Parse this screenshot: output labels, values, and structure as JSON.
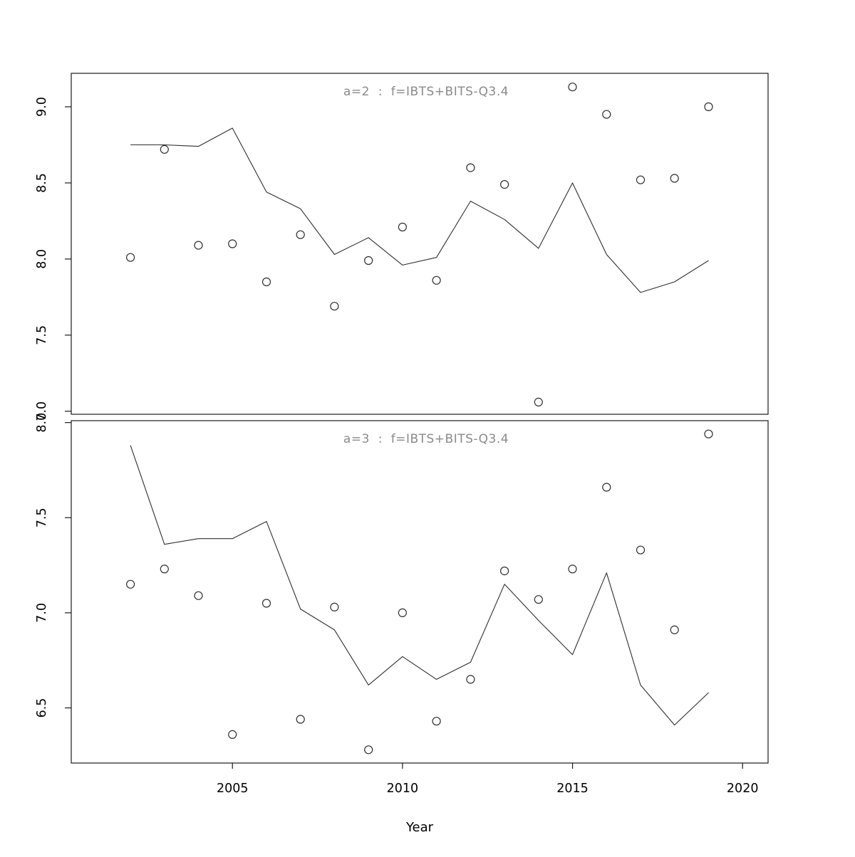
{
  "figure": {
    "xlabel": "Year",
    "background": "#ffffff",
    "axis_color": "#1a1a1a",
    "data_color": "#2e2e2e",
    "title_color": "#8a8a8a",
    "tick_label_color": "#000000"
  },
  "chart_data": [
    {
      "type": "line",
      "title": "a=2  :  f=IBTS+BITS-Q3.4",
      "x": [
        2002,
        2003,
        2004,
        2005,
        2006,
        2007,
        2008,
        2009,
        2010,
        2011,
        2012,
        2013,
        2014,
        2015,
        2016,
        2017,
        2018,
        2019
      ],
      "series": [
        {
          "name": "observed-points",
          "style": "open-circle",
          "values": [
            8.01,
            8.72,
            8.09,
            8.1,
            7.85,
            8.16,
            7.69,
            7.99,
            8.21,
            7.86,
            8.6,
            8.49,
            7.06,
            9.13,
            8.95,
            8.52,
            8.53,
            9.0
          ]
        },
        {
          "name": "fitted-line",
          "style": "line",
          "values": [
            8.75,
            8.75,
            8.74,
            8.86,
            8.44,
            8.33,
            8.03,
            8.14,
            7.96,
            8.01,
            8.38,
            8.26,
            8.07,
            8.5,
            8.03,
            7.78,
            7.85,
            7.99
          ]
        }
      ],
      "xlim": [
        2000.26,
        2020.75
      ],
      "ylim": [
        6.98,
        9.22
      ],
      "yticks": [
        7.0,
        7.5,
        8.0,
        8.5,
        9.0
      ],
      "xticks": [
        2005,
        2010,
        2015,
        2020
      ],
      "show_x_axis": false,
      "grid": false,
      "legend": "none",
      "xlabel": "",
      "ylabel": ""
    },
    {
      "type": "line",
      "title": "a=3  :  f=IBTS+BITS-Q3.4",
      "x": [
        2002,
        2003,
        2004,
        2005,
        2006,
        2007,
        2008,
        2009,
        2010,
        2011,
        2012,
        2013,
        2014,
        2015,
        2016,
        2017,
        2018,
        2019
      ],
      "series": [
        {
          "name": "observed-points",
          "style": "open-circle",
          "values": [
            7.15,
            7.23,
            7.09,
            6.36,
            7.05,
            6.44,
            7.03,
            6.28,
            7.0,
            6.43,
            6.65,
            7.22,
            7.07,
            7.23,
            7.66,
            7.33,
            6.91,
            7.94
          ]
        },
        {
          "name": "fitted-line",
          "style": "line",
          "values": [
            7.88,
            7.36,
            7.39,
            7.39,
            7.48,
            7.02,
            6.91,
            6.62,
            6.77,
            6.65,
            6.74,
            7.15,
            6.96,
            6.78,
            7.21,
            6.62,
            6.41,
            6.58
          ]
        }
      ],
      "xlim": [
        2000.26,
        2020.75
      ],
      "ylim": [
        6.21,
        8.01
      ],
      "yticks": [
        6.5,
        7.0,
        7.5,
        8.0
      ],
      "xticks": [
        2005,
        2010,
        2015,
        2020
      ],
      "show_x_axis": true,
      "grid": false,
      "legend": "none",
      "xlabel": "Year",
      "ylabel": ""
    }
  ]
}
